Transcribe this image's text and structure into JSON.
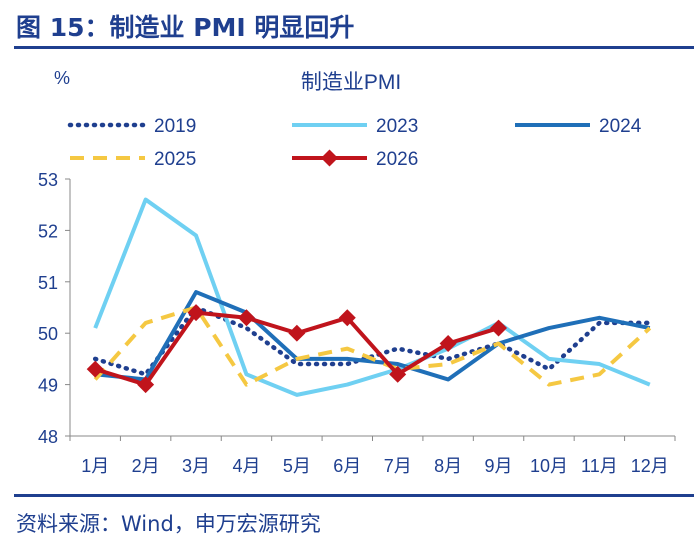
{
  "figure_title": "图 15：制造业 PMI 明显回升",
  "source_note": "资料来源：Wind，申万宏源研究",
  "chart_data": {
    "type": "line",
    "title": "制造业PMI",
    "ylabel": "%",
    "xlabel": "",
    "categories": [
      "1月",
      "2月",
      "3月",
      "4月",
      "5月",
      "6月",
      "7月",
      "8月",
      "9月",
      "10月",
      "11月",
      "12月"
    ],
    "ylim": [
      48,
      53
    ],
    "yticks": [
      48,
      49,
      50,
      51,
      52,
      53
    ],
    "grid": false,
    "legend_position": "top",
    "series": [
      {
        "name": "2019",
        "color": "#1f3f8f",
        "style": "dotted",
        "values": [
          49.5,
          49.2,
          50.5,
          50.1,
          49.4,
          49.4,
          49.7,
          49.5,
          49.8,
          49.3,
          50.2,
          50.2
        ]
      },
      {
        "name": "2023",
        "color": "#6fd0f2",
        "style": "solid",
        "values": [
          50.1,
          52.6,
          51.9,
          49.2,
          48.8,
          49.0,
          49.3,
          49.7,
          50.2,
          49.5,
          49.4,
          49.0
        ]
      },
      {
        "name": "2024",
        "color": "#1f6fb8",
        "style": "solid",
        "values": [
          49.2,
          49.1,
          50.8,
          50.4,
          49.5,
          49.5,
          49.4,
          49.1,
          49.8,
          50.1,
          50.3,
          50.1
        ]
      },
      {
        "name": "2025",
        "color": "#f5c842",
        "style": "dashed",
        "values": [
          49.1,
          50.2,
          50.5,
          49.0,
          49.5,
          49.7,
          49.3,
          49.4,
          49.8,
          49.0,
          49.2,
          50.1
        ]
      },
      {
        "name": "2026",
        "color": "#c0141c",
        "style": "solid-markers",
        "values": [
          49.3,
          49.0,
          50.4,
          50.3,
          50.0,
          50.3,
          49.2,
          49.8,
          50.1,
          null,
          null,
          null
        ]
      }
    ]
  }
}
